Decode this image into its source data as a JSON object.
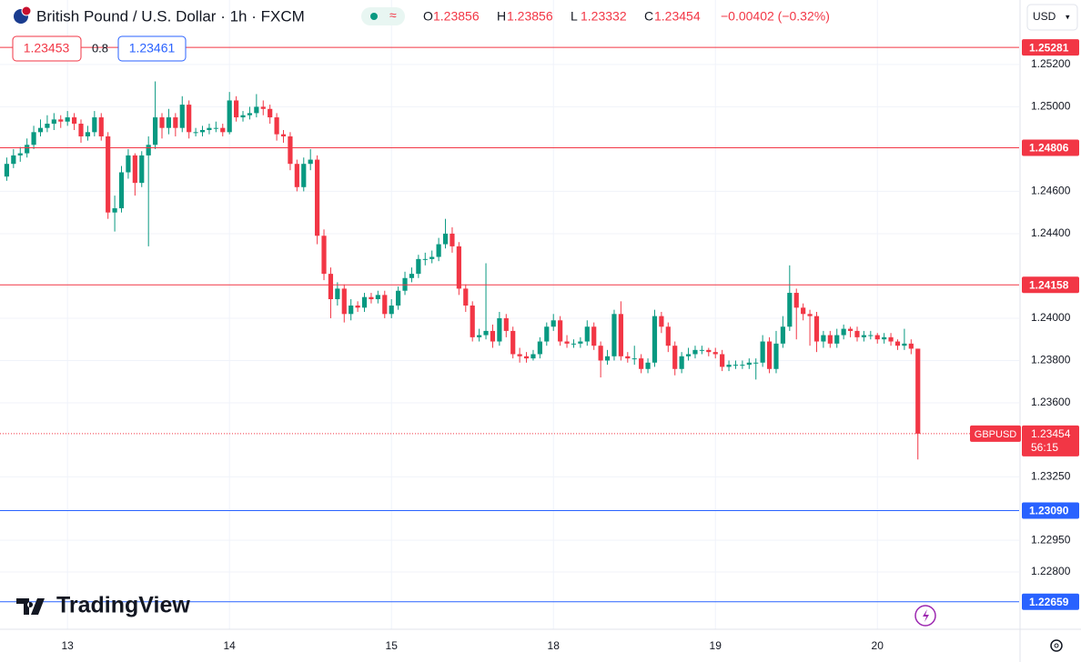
{
  "header": {
    "symbol": "British Pound / U.S. Dollar · 1h · FXCM",
    "ohlc": [
      {
        "key": "O",
        "value": "1.23856"
      },
      {
        "key": "H",
        "value": "1.23856"
      },
      {
        "key": "L",
        "value": "1.23332"
      },
      {
        "key": "C",
        "value": "1.23454"
      }
    ],
    "change": "−0.00402 (−0.32%)",
    "bid": "1.23453",
    "spread": "0.8",
    "ask": "1.23461",
    "currency": "USD",
    "watermark": "TradingView"
  },
  "chart_data": {
    "type": "candlestick",
    "up_color": "#089981",
    "down_color": "#f23645",
    "grid": true,
    "ylim": [
      1.22529,
      1.25505
    ],
    "yticks": [
      {
        "value": 1.252,
        "label": "1.25200"
      },
      {
        "value": 1.25,
        "label": "1.25000"
      },
      {
        "value": 1.246,
        "label": "1.24600"
      },
      {
        "value": 1.244,
        "label": "1.24400"
      },
      {
        "value": 1.24,
        "label": "1.24000"
      },
      {
        "value": 1.238,
        "label": "1.23800"
      },
      {
        "value": 1.236,
        "label": "1.23600"
      },
      {
        "value": 1.2325,
        "label": "1.23250"
      },
      {
        "value": 1.2295,
        "label": "1.22950"
      },
      {
        "value": 1.228,
        "label": "1.22800"
      }
    ],
    "xlim": [
      -1,
      150
    ],
    "xticks": [
      {
        "value": 9,
        "label": "13"
      },
      {
        "value": 33,
        "label": "14"
      },
      {
        "value": 57,
        "label": "15"
      },
      {
        "value": 81,
        "label": "18"
      },
      {
        "value": 105,
        "label": "19"
      },
      {
        "value": 129,
        "label": "20"
      }
    ],
    "open": [
      1.2467,
      1.2473,
      1.2477,
      1.2478,
      1.2482,
      1.2488,
      1.249,
      1.2492,
      1.2494,
      1.2493,
      1.2495,
      1.2492,
      1.2486,
      1.2488,
      1.2495,
      1.2486,
      1.245,
      1.2452,
      1.2469,
      1.2477,
      1.2464,
      1.2477,
      1.2482,
      1.2495,
      1.249,
      1.2495,
      1.249,
      1.2501,
      1.2488,
      1.2488,
      1.2489,
      1.249,
      1.249,
      1.2488,
      1.2503,
      1.2495,
      1.2496,
      1.2497,
      1.25,
      1.2499,
      1.2495,
      1.2487,
      1.2486,
      1.2473,
      1.2462,
      1.2473,
      1.2475,
      1.2439,
      1.2421,
      1.2409,
      1.2414,
      1.2402,
      1.2406,
      1.2405,
      1.241,
      1.2409,
      1.2411,
      1.2402,
      1.2406,
      1.2413,
      1.2419,
      1.2421,
      1.2428,
      1.2428,
      1.2429,
      1.2435,
      1.244,
      1.2434,
      1.2414,
      1.2406,
      1.2391,
      1.2392,
      1.2394,
      1.2389,
      1.24,
      1.2394,
      1.2383,
      1.2382,
      1.2381,
      1.2383,
      1.2389,
      1.2396,
      1.2399,
      1.2389,
      1.2388,
      1.2388,
      1.2389,
      1.2396,
      1.2387,
      1.238,
      1.2382,
      1.2402,
      1.2382,
      1.2381,
      1.2381,
      1.2376,
      1.2379,
      1.2401,
      1.2396,
      1.2387,
      1.2376,
      1.2382,
      1.2383,
      1.2385,
      1.2385,
      1.2384,
      1.2383,
      1.2377,
      1.2378,
      1.2378,
      1.2378,
      1.2379,
      1.2379,
      1.2389,
      1.2376,
      1.2388,
      1.2396,
      1.2412,
      1.2405,
      1.2402,
      1.2401,
      1.2389,
      1.2392,
      1.2388,
      1.2392,
      1.2395,
      1.2394,
      1.2391,
      1.2392,
      1.2392,
      1.239,
      1.2391,
      1.2389,
      1.2387,
      1.2388,
      1.23856
    ],
    "high": [
      1.2476,
      1.248,
      1.2481,
      1.2485,
      1.2491,
      1.2494,
      1.2496,
      1.2497,
      1.2496,
      1.2498,
      1.2497,
      1.2494,
      1.2491,
      1.2498,
      1.2497,
      1.2488,
      1.2458,
      1.2472,
      1.248,
      1.2478,
      1.2479,
      1.2486,
      1.2512,
      1.2497,
      1.2499,
      1.2497,
      1.2505,
      1.2503,
      1.249,
      1.2491,
      1.2492,
      1.2493,
      1.2492,
      1.2507,
      1.2505,
      1.2498,
      1.25,
      1.2506,
      1.2503,
      1.2501,
      1.2497,
      1.2489,
      1.2488,
      1.2475,
      1.2476,
      1.248,
      1.2477,
      1.2442,
      1.2424,
      1.2417,
      1.2416,
      1.2409,
      1.2408,
      1.2412,
      1.2412,
      1.2413,
      1.2413,
      1.2409,
      1.2415,
      1.2422,
      1.2424,
      1.243,
      1.2431,
      1.2432,
      1.2438,
      1.2447,
      1.2443,
      1.2436,
      1.2416,
      1.2408,
      1.2395,
      1.2426,
      1.2397,
      1.2403,
      1.2402,
      1.2396,
      1.2386,
      1.2384,
      1.2385,
      1.2391,
      1.2398,
      1.2402,
      1.2401,
      1.2392,
      1.239,
      1.2391,
      1.2399,
      1.2398,
      1.2389,
      1.2385,
      1.2404,
      1.2408,
      1.2384,
      1.2387,
      1.2383,
      1.2381,
      1.2404,
      1.2403,
      1.2398,
      1.2389,
      1.2384,
      1.2386,
      1.2387,
      1.2387,
      1.2386,
      1.2386,
      1.2385,
      1.238,
      1.238,
      1.238,
      1.2381,
      1.2381,
      1.2392,
      1.2391,
      1.2394,
      1.2401,
      1.2425,
      1.2414,
      1.2407,
      1.2404,
      1.2403,
      1.2394,
      1.2394,
      1.2395,
      1.2397,
      1.2396,
      1.2396,
      1.2394,
      1.2394,
      1.2393,
      1.2393,
      1.2393,
      1.239,
      1.2395,
      1.239,
      1.23856
    ],
    "low": [
      1.2465,
      1.2471,
      1.2474,
      1.2476,
      1.248,
      1.2486,
      1.2488,
      1.2489,
      1.249,
      1.2491,
      1.2489,
      1.2483,
      1.2484,
      1.2486,
      1.2484,
      1.2447,
      1.2441,
      1.245,
      1.2466,
      1.2458,
      1.2462,
      1.2434,
      1.248,
      1.2485,
      1.2487,
      1.2486,
      1.2488,
      1.2485,
      1.2486,
      1.2486,
      1.2487,
      1.2488,
      1.2486,
      1.2487,
      1.2493,
      1.2493,
      1.2494,
      1.2495,
      1.2496,
      1.2492,
      1.2484,
      1.2483,
      1.247,
      1.246,
      1.246,
      1.247,
      1.2435,
      1.2418,
      1.24,
      1.2406,
      1.2398,
      1.2399,
      1.2403,
      1.2403,
      1.2407,
      1.2407,
      1.24,
      1.24,
      1.2404,
      1.2411,
      1.2417,
      1.2419,
      1.2425,
      1.2426,
      1.2427,
      1.2433,
      1.2431,
      1.2411,
      1.2403,
      1.2389,
      1.2389,
      1.239,
      1.2386,
      1.2387,
      1.2391,
      1.2381,
      1.2379,
      1.2379,
      1.238,
      1.2381,
      1.2387,
      1.2394,
      1.2387,
      1.2386,
      1.2386,
      1.2386,
      1.2387,
      1.2385,
      1.2372,
      1.2378,
      1.238,
      1.238,
      1.2379,
      1.2378,
      1.2374,
      1.2374,
      1.2377,
      1.2393,
      1.2384,
      1.2373,
      1.2374,
      1.238,
      1.2381,
      1.2383,
      1.2382,
      1.2381,
      1.2375,
      1.2375,
      1.2376,
      1.2376,
      1.2376,
      1.2371,
      1.2377,
      1.2374,
      1.2374,
      1.2386,
      1.2394,
      1.239,
      1.2399,
      1.2387,
      1.2384,
      1.2386,
      1.2386,
      1.2386,
      1.239,
      1.2391,
      1.2389,
      1.2389,
      1.239,
      1.2388,
      1.2388,
      1.2387,
      1.2385,
      1.2385,
      1.2383,
      1.23332
    ],
    "close": [
      1.2473,
      1.2477,
      1.2478,
      1.2482,
      1.2488,
      1.249,
      1.2492,
      1.2494,
      1.2493,
      1.2495,
      1.2492,
      1.2486,
      1.2488,
      1.2495,
      1.2486,
      1.245,
      1.2452,
      1.2469,
      1.2477,
      1.2464,
      1.2477,
      1.2482,
      1.2495,
      1.249,
      1.2495,
      1.249,
      1.2501,
      1.2488,
      1.2488,
      1.2489,
      1.249,
      1.249,
      1.2488,
      1.2503,
      1.2495,
      1.2496,
      1.2497,
      1.25,
      1.2499,
      1.2495,
      1.2487,
      1.2486,
      1.2473,
      1.2462,
      1.2473,
      1.2475,
      1.2439,
      1.2421,
      1.2409,
      1.2414,
      1.2402,
      1.2406,
      1.2405,
      1.241,
      1.2409,
      1.2411,
      1.2402,
      1.2406,
      1.2413,
      1.2419,
      1.2421,
      1.2428,
      1.2428,
      1.2429,
      1.2435,
      1.244,
      1.2434,
      1.2414,
      1.2406,
      1.2391,
      1.2392,
      1.2394,
      1.2389,
      1.24,
      1.2394,
      1.2383,
      1.2382,
      1.2381,
      1.2383,
      1.2389,
      1.2396,
      1.2399,
      1.2389,
      1.2388,
      1.2388,
      1.2389,
      1.2396,
      1.2387,
      1.238,
      1.2382,
      1.2402,
      1.2382,
      1.2381,
      1.2381,
      1.2376,
      1.2379,
      1.2401,
      1.2396,
      1.2387,
      1.2376,
      1.2382,
      1.2383,
      1.2385,
      1.2385,
      1.2384,
      1.2383,
      1.2377,
      1.2378,
      1.2378,
      1.2378,
      1.2379,
      1.2379,
      1.2389,
      1.2376,
      1.2388,
      1.2396,
      1.2412,
      1.2405,
      1.2402,
      1.2401,
      1.2389,
      1.2392,
      1.2388,
      1.2392,
      1.2395,
      1.2394,
      1.2391,
      1.2392,
      1.2392,
      1.239,
      1.2391,
      1.2389,
      1.2387,
      1.2388,
      1.23856,
      1.23454
    ],
    "hlines": [
      {
        "value": 1.25281,
        "color": "#f23645"
      },
      {
        "value": 1.24806,
        "color": "#f23645"
      },
      {
        "value": 1.24158,
        "color": "#f23645"
      },
      {
        "value": 1.2309,
        "label": "1.23090",
        "color": "#2962ff"
      },
      {
        "value": 1.22659,
        "color": "#2962ff"
      }
    ],
    "last_price": {
      "symbol": "GBPUSD",
      "value": 1.23454,
      "countdown": "56:15"
    }
  }
}
